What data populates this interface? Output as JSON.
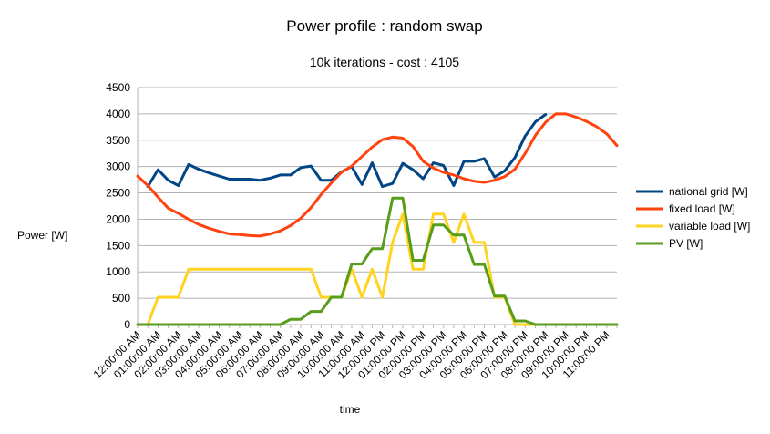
{
  "chart_data": {
    "type": "line",
    "title": "Power profile : random swap",
    "subtitle": "10k iterations - cost : 4105",
    "xlabel": "time",
    "ylabel": "Power [W]",
    "ylim": [
      0,
      4500
    ],
    "yticks": [
      0,
      500,
      1000,
      1500,
      2000,
      2500,
      3000,
      3500,
      4000,
      4500
    ],
    "grid": true,
    "legend_position": "right",
    "x_tick_labels": [
      "12:00:00 AM",
      "01:00:00 AM",
      "02:00:00 AM",
      "03:00:00 AM",
      "04:00:00 AM",
      "05:00:00 AM",
      "06:00:00 AM",
      "07:00:00 AM",
      "08:00:00 AM",
      "09:00:00 AM",
      "10:00:00 AM",
      "11:00:00 AM",
      "12:00:00 PM",
      "01:00:00 PM",
      "02:00:00 PM",
      "03:00:00 PM",
      "04:00:00 PM",
      "05:00:00 PM",
      "06:00:00 PM",
      "07:00:00 PM",
      "08:00:00 PM",
      "09:00:00 PM",
      "10:00:00 PM",
      "11:00:00 PM"
    ],
    "x_hours": [
      0,
      0.5,
      1,
      1.5,
      2,
      2.5,
      3,
      3.5,
      4,
      4.5,
      5,
      5.5,
      6,
      6.5,
      7,
      7.5,
      8,
      8.5,
      9,
      9.5,
      10,
      10.5,
      11,
      11.5,
      12,
      12.5,
      13,
      13.5,
      14,
      14.5,
      15,
      15.5,
      16,
      16.5,
      17,
      17.5,
      18,
      18.5,
      19,
      19.5,
      20,
      20.5,
      21,
      21.5,
      22,
      22.5,
      23,
      23.5
    ],
    "series": [
      {
        "name": "national grid [W]",
        "color": "#004586",
        "values": [
          null,
          2620,
          2940,
          2740,
          2640,
          3040,
          2950,
          2880,
          2820,
          2760,
          2760,
          2760,
          2740,
          2780,
          2840,
          2840,
          2980,
          3010,
          2740,
          2740,
          2900,
          3000,
          2660,
          3070,
          2620,
          2680,
          3060,
          2940,
          2770,
          3070,
          3020,
          2640,
          3100,
          3100,
          3150,
          2800,
          2920,
          3170,
          3580,
          3850,
          3990,
          null,
          null,
          null,
          null,
          null,
          null,
          null
        ]
      },
      {
        "name": "fixed load [W]",
        "color": "#ff420e",
        "values": [
          2820,
          2640,
          2420,
          2210,
          2110,
          2000,
          1900,
          1830,
          1770,
          1720,
          1710,
          1690,
          1680,
          1720,
          1780,
          1880,
          2020,
          2220,
          2470,
          2690,
          2890,
          3010,
          3190,
          3370,
          3510,
          3560,
          3540,
          3380,
          3100,
          2970,
          2890,
          2840,
          2770,
          2720,
          2700,
          2740,
          2810,
          2950,
          3250,
          3590,
          3840,
          4000,
          4000,
          3940,
          3860,
          3760,
          3620,
          3400
        ]
      },
      {
        "name": "variable load [W]",
        "color": "#ffd320",
        "values": [
          0,
          0,
          520,
          520,
          520,
          1050,
          1050,
          1050,
          1050,
          1050,
          1050,
          1050,
          1050,
          1050,
          1050,
          1050,
          1050,
          1050,
          520,
          520,
          520,
          1050,
          520,
          1050,
          520,
          1560,
          2100,
          1050,
          1050,
          2100,
          2100,
          1560,
          2100,
          1560,
          1560,
          520,
          520,
          0,
          0,
          0,
          0,
          0,
          0,
          0,
          0,
          0,
          0,
          0
        ]
      },
      {
        "name": "PV [W]",
        "color": "#579d1c",
        "values": [
          0,
          0,
          0,
          0,
          0,
          0,
          0,
          0,
          0,
          0,
          0,
          0,
          0,
          0,
          0,
          100,
          100,
          250,
          250,
          520,
          520,
          1150,
          1150,
          1440,
          1440,
          2400,
          2400,
          1220,
          1220,
          1890,
          1890,
          1700,
          1700,
          1140,
          1140,
          540,
          540,
          70,
          70,
          0,
          0,
          0,
          0,
          0,
          0,
          0,
          0,
          0
        ]
      }
    ]
  }
}
